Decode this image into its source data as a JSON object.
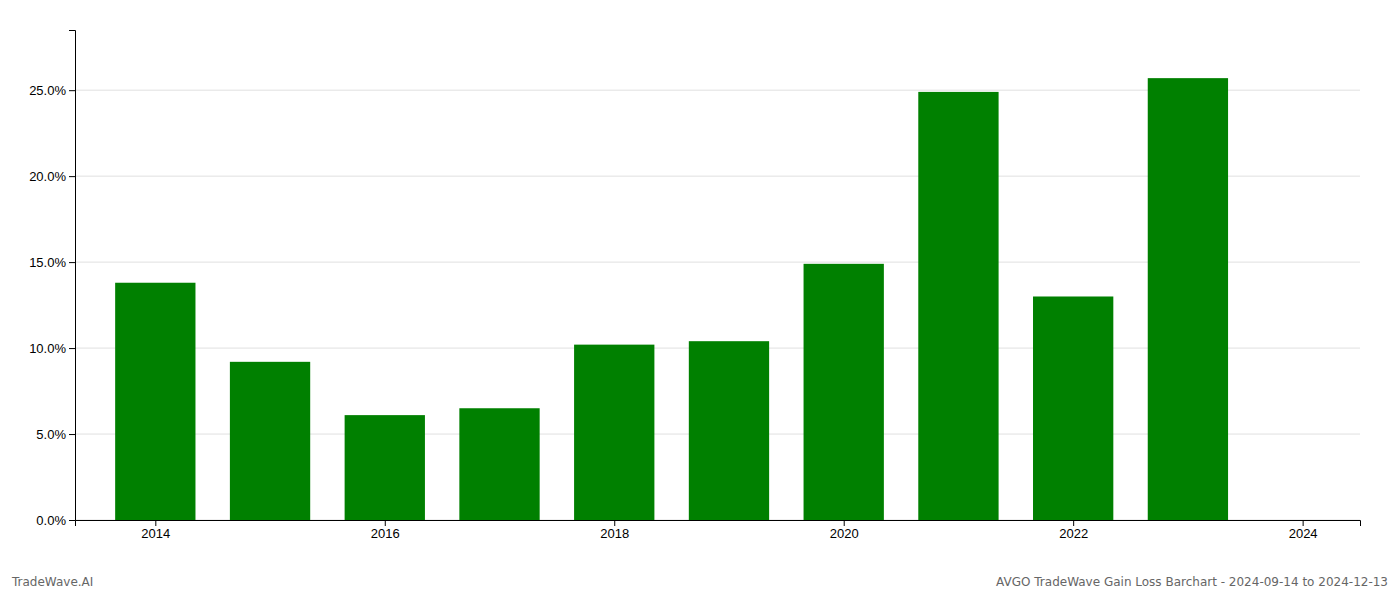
{
  "chart_data": {
    "type": "bar",
    "x": [
      2014,
      2015,
      2016,
      2017,
      2018,
      2019,
      2020,
      2021,
      2022,
      2023
    ],
    "values": [
      0.138,
      0.092,
      0.061,
      0.065,
      0.102,
      0.104,
      0.149,
      0.249,
      0.13,
      0.257
    ],
    "color": "#008000",
    "xlim": [
      2013.3,
      2024.5
    ],
    "xticks": [
      2014,
      2016,
      2018,
      2020,
      2022,
      2024
    ],
    "ylim": [
      0,
      0.285
    ],
    "yticks": [
      {
        "value": 0.0,
        "label": "0.0%"
      },
      {
        "value": 0.05,
        "label": "5.0%"
      },
      {
        "value": 0.1,
        "label": "10.0%"
      },
      {
        "value": 0.15,
        "label": "15.0%"
      },
      {
        "value": 0.2,
        "label": "20.0%"
      },
      {
        "value": 0.25,
        "label": "25.0%"
      }
    ],
    "grid": true,
    "annotations": [
      "TradeWave.AI",
      "AVGO TradeWave Gain Loss Barchart - 2024-09-14 to 2024-12-13"
    ]
  }
}
